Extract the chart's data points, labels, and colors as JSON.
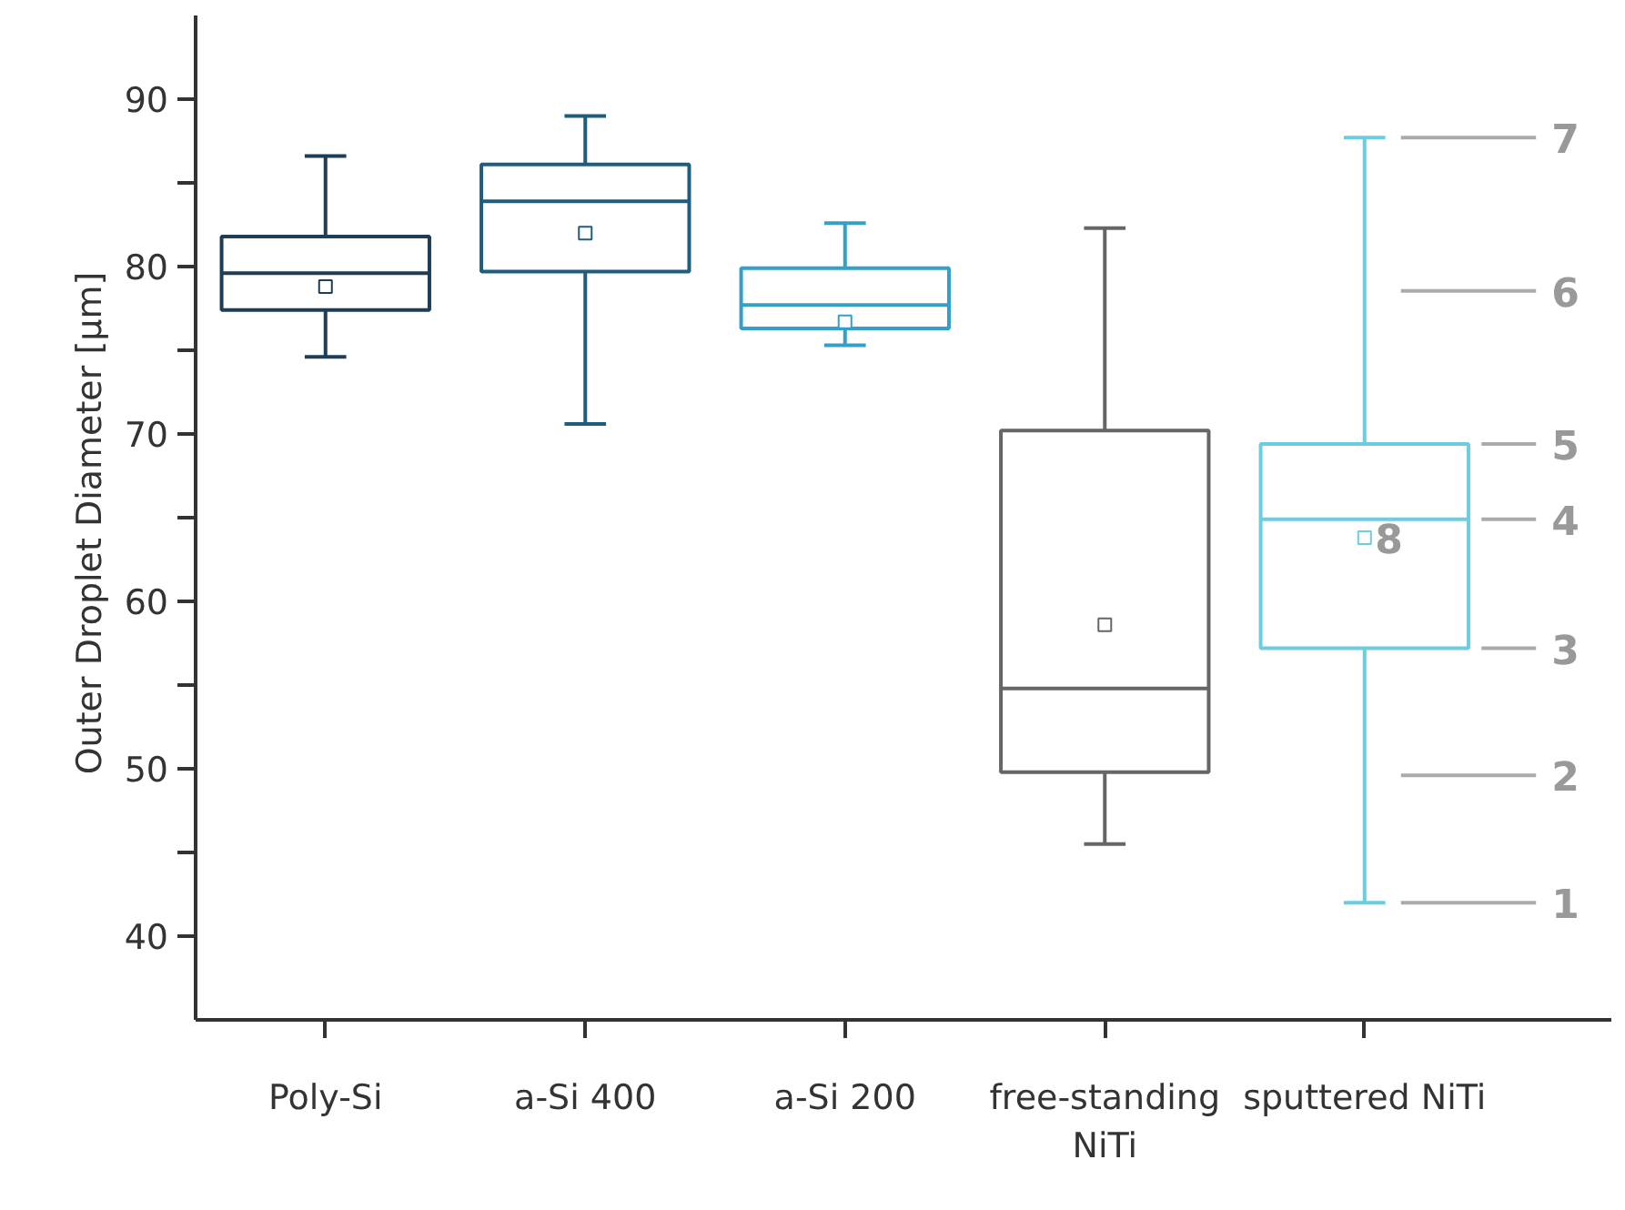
{
  "chart_data": {
    "type": "box",
    "ylabel": "Outer Droplet Diameter  [µm]",
    "categories": [
      "Poly-Si",
      "a-Si 400",
      "a-Si 200",
      "free-standing NiTi",
      "sputtered NiTi"
    ],
    "colors": [
      "#1e3d56",
      "#1f5d7c",
      "#34a0c8",
      "#666666",
      "#6ccde0"
    ],
    "boxes": [
      {
        "low": 74.6,
        "q1": 77.4,
        "median": 79.6,
        "q3": 81.8,
        "high": 86.6,
        "mean": 78.8
      },
      {
        "low": 70.6,
        "q1": 79.7,
        "median": 83.9,
        "q3": 86.1,
        "high": 89.0,
        "mean": 82.0
      },
      {
        "low": 75.3,
        "q1": 76.3,
        "median": 77.7,
        "q3": 79.9,
        "high": 82.6,
        "mean": 76.7
      },
      {
        "low": 45.5,
        "q1": 49.8,
        "median": 54.8,
        "q3": 70.2,
        "high": 82.3,
        "mean": 58.6
      },
      {
        "low": 42.0,
        "q1": 57.2,
        "median": 64.9,
        "q3": 69.4,
        "high": 87.7,
        "mean": 63.8
      }
    ],
    "ylim": [
      35,
      95
    ],
    "yticks": [
      40,
      {
        "value": 45,
        "label": null
      },
      50,
      {
        "value": 55,
        "label": null
      },
      60,
      {
        "value": 65,
        "label": null
      },
      70,
      {
        "value": 75,
        "label": null
      },
      80,
      {
        "value": 85,
        "label": null
      },
      90
    ],
    "annotations": [
      "1",
      "2",
      "3",
      "4",
      "5",
      "6",
      "7",
      "8"
    ],
    "grid": false
  }
}
